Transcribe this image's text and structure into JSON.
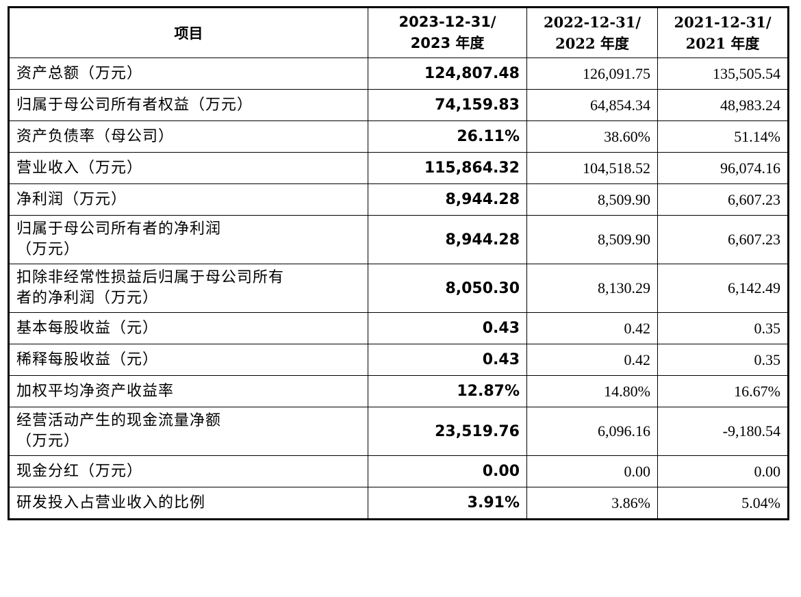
{
  "table": {
    "headers": {
      "item": "项目",
      "col_2023_line1": "2023-12-31/",
      "col_2023_line2": "2023 年度",
      "col_2022_line1": "2022-12-31/",
      "col_2022_line2": "2022 年度",
      "col_2021_line1": "2021-12-31/",
      "col_2021_line2": "2021 年度"
    },
    "rows": [
      {
        "label": "资产总额（万元）",
        "v2023": "124,807.48",
        "v2022": "126,091.75",
        "v2021": "135,505.54"
      },
      {
        "label": "归属于母公司所有者权益（万元）",
        "v2023": "74,159.83",
        "v2022": "64,854.34",
        "v2021": "48,983.24"
      },
      {
        "label": "资产负债率（母公司）",
        "v2023": "26.11%",
        "v2022": "38.60%",
        "v2021": "51.14%"
      },
      {
        "label": "营业收入（万元）",
        "v2023": "115,864.32",
        "v2022": "104,518.52",
        "v2021": "96,074.16"
      },
      {
        "label": "净利润（万元）",
        "v2023": "8,944.28",
        "v2022": "8,509.90",
        "v2021": "6,607.23"
      },
      {
        "label_line1": "归属于母公司所有者的净利润",
        "label_line2": "（万元）",
        "v2023": "8,944.28",
        "v2022": "8,509.90",
        "v2021": "6,607.23"
      },
      {
        "label_line1": "扣除非经常性损益后归属于母公司所有",
        "label_line2": "者的净利润（万元）",
        "v2023": "8,050.30",
        "v2022": "8,130.29",
        "v2021": "6,142.49"
      },
      {
        "label": "基本每股收益（元）",
        "v2023": "0.43",
        "v2022": "0.42",
        "v2021": "0.35"
      },
      {
        "label": "稀释每股收益（元）",
        "v2023": "0.43",
        "v2022": "0.42",
        "v2021": "0.35"
      },
      {
        "label": "加权平均净资产收益率",
        "v2023": "12.87%",
        "v2022": "14.80%",
        "v2021": "16.67%"
      },
      {
        "label_line1": "经营活动产生的现金流量净额",
        "label_line2": "（万元）",
        "v2023": "23,519.76",
        "v2022": "6,096.16",
        "v2021": "-9,180.54"
      },
      {
        "label": "现金分红（万元）",
        "v2023": "0.00",
        "v2022": "0.00",
        "v2021": "0.00"
      },
      {
        "label": "研发投入占营业收入的比例",
        "v2023": "3.91%",
        "v2022": "3.86%",
        "v2021": "5.04%"
      }
    ]
  }
}
